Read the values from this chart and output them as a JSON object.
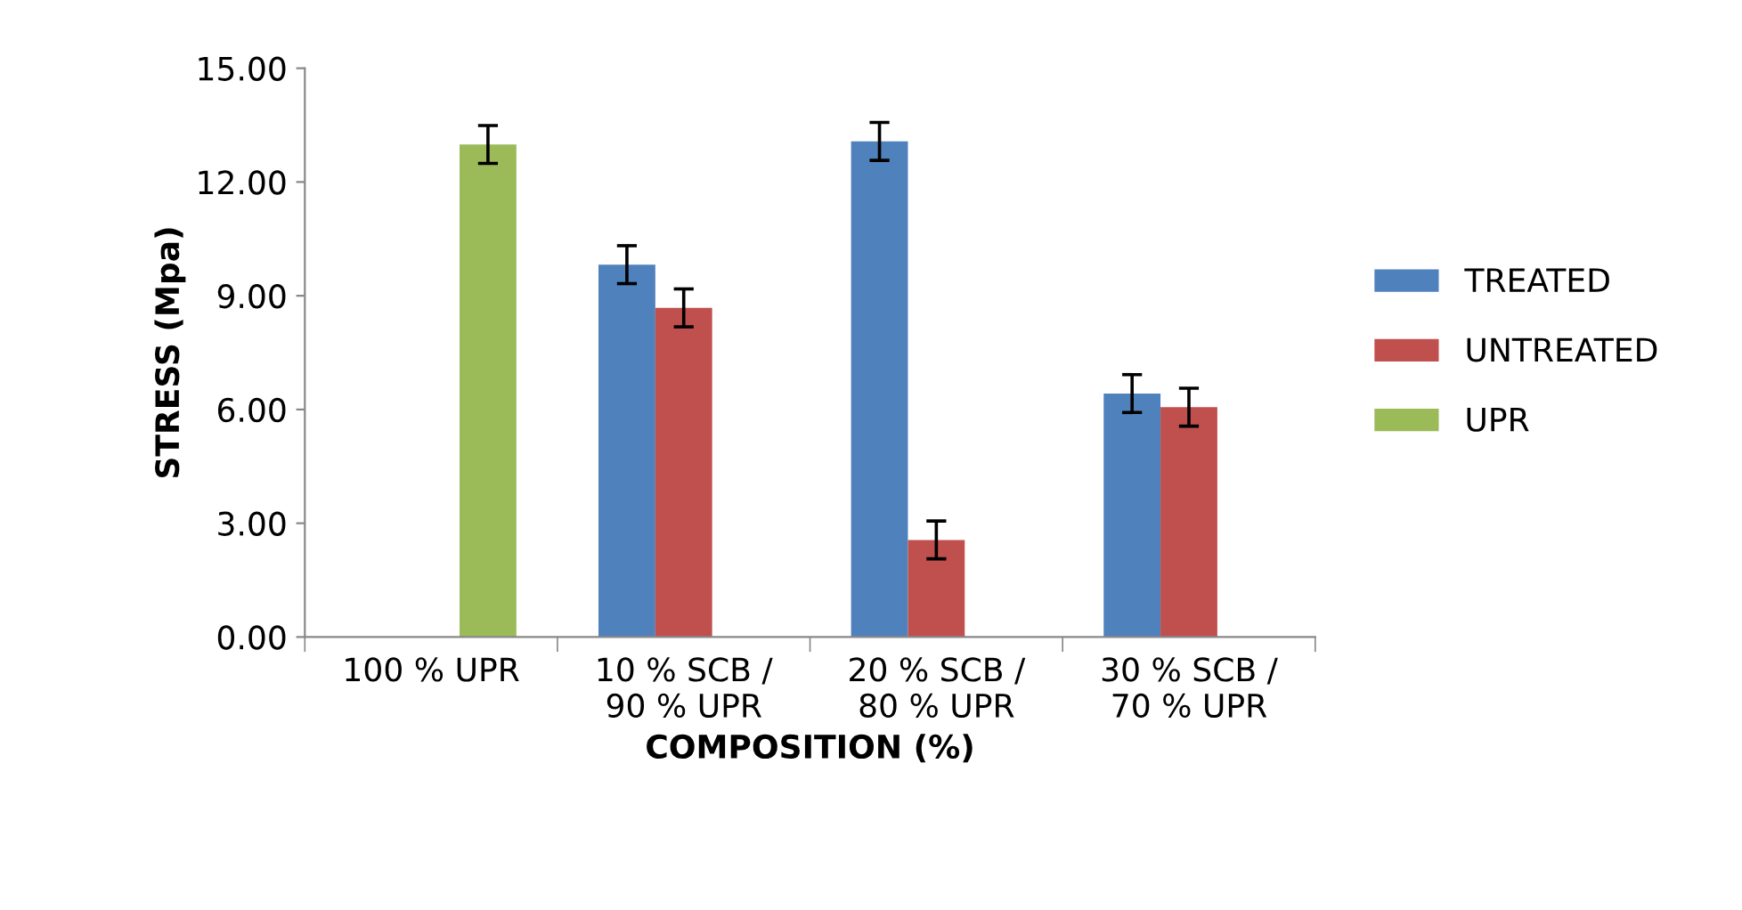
{
  "chart_data": {
    "type": "bar",
    "xlabel": "COMPOSITION (%)",
    "ylabel": "STRESS (Mpa)",
    "categories": [
      "100 % UPR",
      "10 % SCB /\n90 % UPR",
      "20 % SCB /\n80 % UPR",
      "30 % SCB /\n70 % UPR"
    ],
    "series": [
      {
        "name": "TREATED",
        "color": "#4f81bd",
        "values": [
          null,
          9.82,
          13.07,
          6.42
        ],
        "errors": [
          null,
          0.5,
          0.5,
          0.5
        ]
      },
      {
        "name": "UNTREATED",
        "color": "#c0504d",
        "values": [
          null,
          8.68,
          2.56,
          6.06
        ],
        "errors": [
          null,
          0.5,
          0.5,
          0.5
        ]
      },
      {
        "name": "UPR",
        "color": "#9bbb59",
        "values": [
          12.99,
          null,
          null,
          null
        ],
        "errors": [
          0.5,
          null,
          null,
          null
        ]
      }
    ],
    "ylim": [
      0,
      15
    ],
    "yticks": [
      {
        "value": 0,
        "label": "0.00"
      },
      {
        "value": 3,
        "label": "3.00"
      },
      {
        "value": 6,
        "label": "6.00"
      },
      {
        "value": 9,
        "label": "9.00"
      },
      {
        "value": 12,
        "label": "12.00"
      },
      {
        "value": 15,
        "label": "15.00"
      }
    ],
    "grid": false,
    "legend": "right"
  }
}
